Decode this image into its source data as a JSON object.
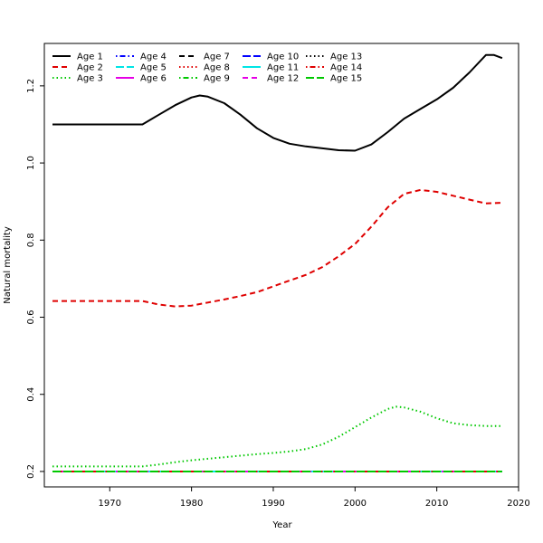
{
  "chart_data": {
    "type": "line",
    "title": "",
    "xlabel": "Year",
    "ylabel": "Natural mortality",
    "xlim": [
      1962,
      2020
    ],
    "ylim": [
      0.16,
      1.31
    ],
    "xticks": [
      1970,
      1980,
      1990,
      2000,
      2010,
      2020
    ],
    "yticks": [
      0.2,
      0.4,
      0.6,
      0.8,
      1.0,
      1.2
    ],
    "ytick_labels": [
      "0.2",
      "0.4",
      "0.6",
      "0.8",
      "1.0",
      "1.2"
    ],
    "grid": false,
    "legend_position": "top-left",
    "legend_columns": 5,
    "series": [
      {
        "name": "Age 1",
        "color": "#000000",
        "dash": "solid",
        "x": [
          1963,
          1974,
          1976,
          1978,
          1980,
          1981,
          1982,
          1984,
          1986,
          1988,
          1990,
          1992,
          1994,
          1996,
          1998,
          2000,
          2002,
          2004,
          2006,
          2008,
          2010,
          2012,
          2014,
          2016,
          2017,
          2018
        ],
        "y": [
          1.1,
          1.1,
          1.125,
          1.15,
          1.17,
          1.175,
          1.172,
          1.155,
          1.125,
          1.09,
          1.065,
          1.05,
          1.043,
          1.038,
          1.033,
          1.032,
          1.048,
          1.08,
          1.115,
          1.14,
          1.165,
          1.195,
          1.235,
          1.28,
          1.28,
          1.272
        ]
      },
      {
        "name": "Age 2",
        "color": "#df0000",
        "dash": "dashed",
        "x": [
          1963,
          1974,
          1976,
          1978,
          1980,
          1982,
          1984,
          1986,
          1988,
          1990,
          1992,
          1994,
          1996,
          1998,
          2000,
          2002,
          2004,
          2006,
          2008,
          2010,
          2012,
          2014,
          2016,
          2018
        ],
        "y": [
          0.642,
          0.642,
          0.633,
          0.628,
          0.63,
          0.638,
          0.646,
          0.655,
          0.665,
          0.68,
          0.695,
          0.71,
          0.73,
          0.758,
          0.79,
          0.835,
          0.885,
          0.92,
          0.93,
          0.925,
          0.915,
          0.905,
          0.895,
          0.897
        ]
      },
      {
        "name": "Age 3",
        "color": "#00c800",
        "dash": "dotted",
        "x": [
          1963,
          1974,
          1976,
          1978,
          1980,
          1982,
          1984,
          1986,
          1988,
          1990,
          1992,
          1994,
          1996,
          1998,
          2000,
          2002,
          2004,
          2005,
          2006,
          2008,
          2010,
          2012,
          2014,
          2016,
          2018
        ],
        "y": [
          0.213,
          0.213,
          0.218,
          0.224,
          0.229,
          0.233,
          0.237,
          0.241,
          0.245,
          0.248,
          0.252,
          0.258,
          0.27,
          0.29,
          0.315,
          0.34,
          0.362,
          0.368,
          0.366,
          0.355,
          0.338,
          0.325,
          0.32,
          0.318,
          0.318
        ]
      },
      {
        "name": "Age 4",
        "color": "#0000ff",
        "dash": "dotdash",
        "x": [
          1963,
          2018
        ],
        "y": [
          0.2,
          0.2
        ]
      },
      {
        "name": "Age 5",
        "color": "#00e5e5",
        "dash": "longdash",
        "x": [
          1963,
          2018
        ],
        "y": [
          0.2,
          0.2
        ]
      },
      {
        "name": "Age 6",
        "color": "#e600e6",
        "dash": "solid",
        "x": [
          1963,
          2018
        ],
        "y": [
          0.2,
          0.2
        ]
      },
      {
        "name": "Age 7",
        "color": "#000000",
        "dash": "dashed",
        "x": [
          1963,
          2018
        ],
        "y": [
          0.2,
          0.2
        ]
      },
      {
        "name": "Age 8",
        "color": "#df0000",
        "dash": "dotted",
        "x": [
          1963,
          2018
        ],
        "y": [
          0.2,
          0.2
        ]
      },
      {
        "name": "Age 9",
        "color": "#00c800",
        "dash": "dotdash",
        "x": [
          1963,
          2018
        ],
        "y": [
          0.2,
          0.2
        ]
      },
      {
        "name": "Age 10",
        "color": "#0000ff",
        "dash": "longdash",
        "x": [
          1963,
          2018
        ],
        "y": [
          0.2,
          0.2
        ]
      },
      {
        "name": "Age 11",
        "color": "#00e5e5",
        "dash": "solid",
        "x": [
          1963,
          2018
        ],
        "y": [
          0.2,
          0.2
        ]
      },
      {
        "name": "Age 12",
        "color": "#e600e6",
        "dash": "dashed",
        "x": [
          1963,
          2018
        ],
        "y": [
          0.2,
          0.2
        ]
      },
      {
        "name": "Age 13",
        "color": "#000000",
        "dash": "dotted",
        "x": [
          1963,
          2018
        ],
        "y": [
          0.2,
          0.2
        ]
      },
      {
        "name": "Age 14",
        "color": "#df0000",
        "dash": "dotdash",
        "x": [
          1963,
          2018
        ],
        "y": [
          0.2,
          0.2
        ]
      },
      {
        "name": "Age 15",
        "color": "#00c800",
        "dash": "longdash",
        "x": [
          1963,
          2018
        ],
        "y": [
          0.2,
          0.2
        ]
      }
    ]
  }
}
